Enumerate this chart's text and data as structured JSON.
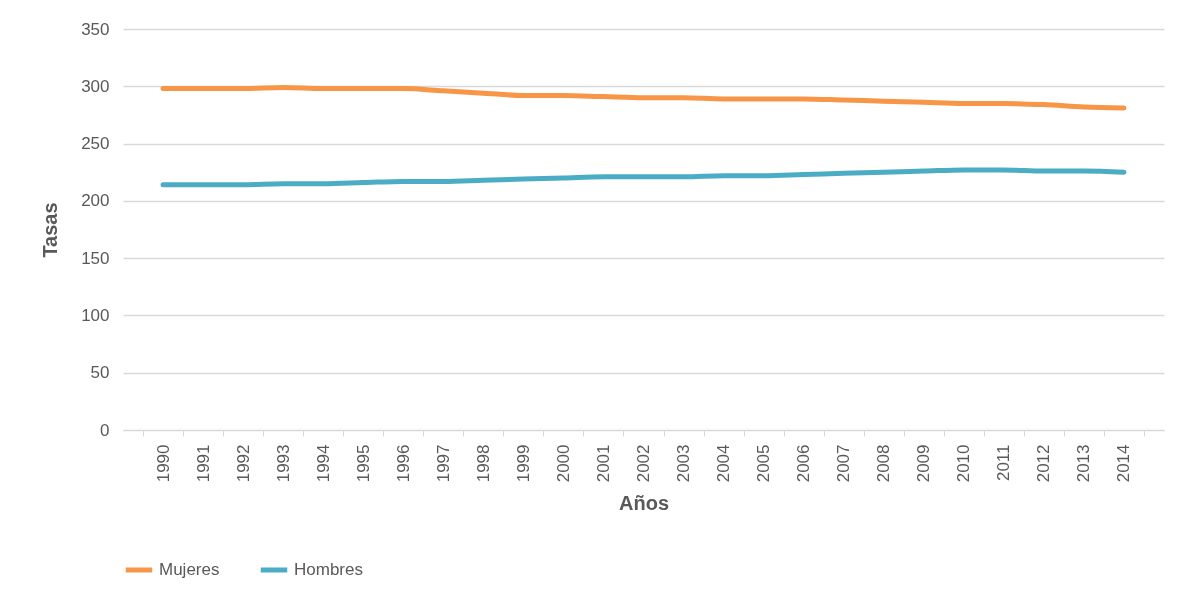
{
  "chart_data": {
    "type": "line",
    "xlabel": "Años",
    "ylabel": "Tasas",
    "categories": [
      "1990",
      "1991",
      "1992",
      "1993",
      "1994",
      "1995",
      "1996",
      "1997",
      "1998",
      "1999",
      "2000",
      "2001",
      "2002",
      "2003",
      "2004",
      "2005",
      "2006",
      "2007",
      "2008",
      "2009",
      "2010",
      "2011",
      "2012",
      "2013",
      "2014"
    ],
    "series": [
      {
        "name": "Mujeres",
        "color": "#f79646",
        "values": [
          298,
          298,
          298,
          299,
          298,
          298,
          298,
          296,
          294,
          292,
          292,
          291,
          290,
          290,
          289,
          289,
          289,
          288,
          287,
          286,
          285,
          285,
          284,
          282,
          281
        ]
      },
      {
        "name": "Hombres",
        "color": "#4bacc6",
        "values": [
          214,
          214,
          214,
          215,
          215,
          216,
          217,
          217,
          218,
          219,
          220,
          221,
          221,
          221,
          222,
          222,
          223,
          224,
          225,
          226,
          227,
          227,
          226,
          226,
          225
        ]
      }
    ],
    "ylim": [
      0,
      350
    ],
    "yticks": [
      0,
      50,
      100,
      150,
      200,
      250,
      300,
      350
    ],
    "grid": "y",
    "legend": "bottom",
    "marker": "none",
    "line_style": "solid"
  }
}
